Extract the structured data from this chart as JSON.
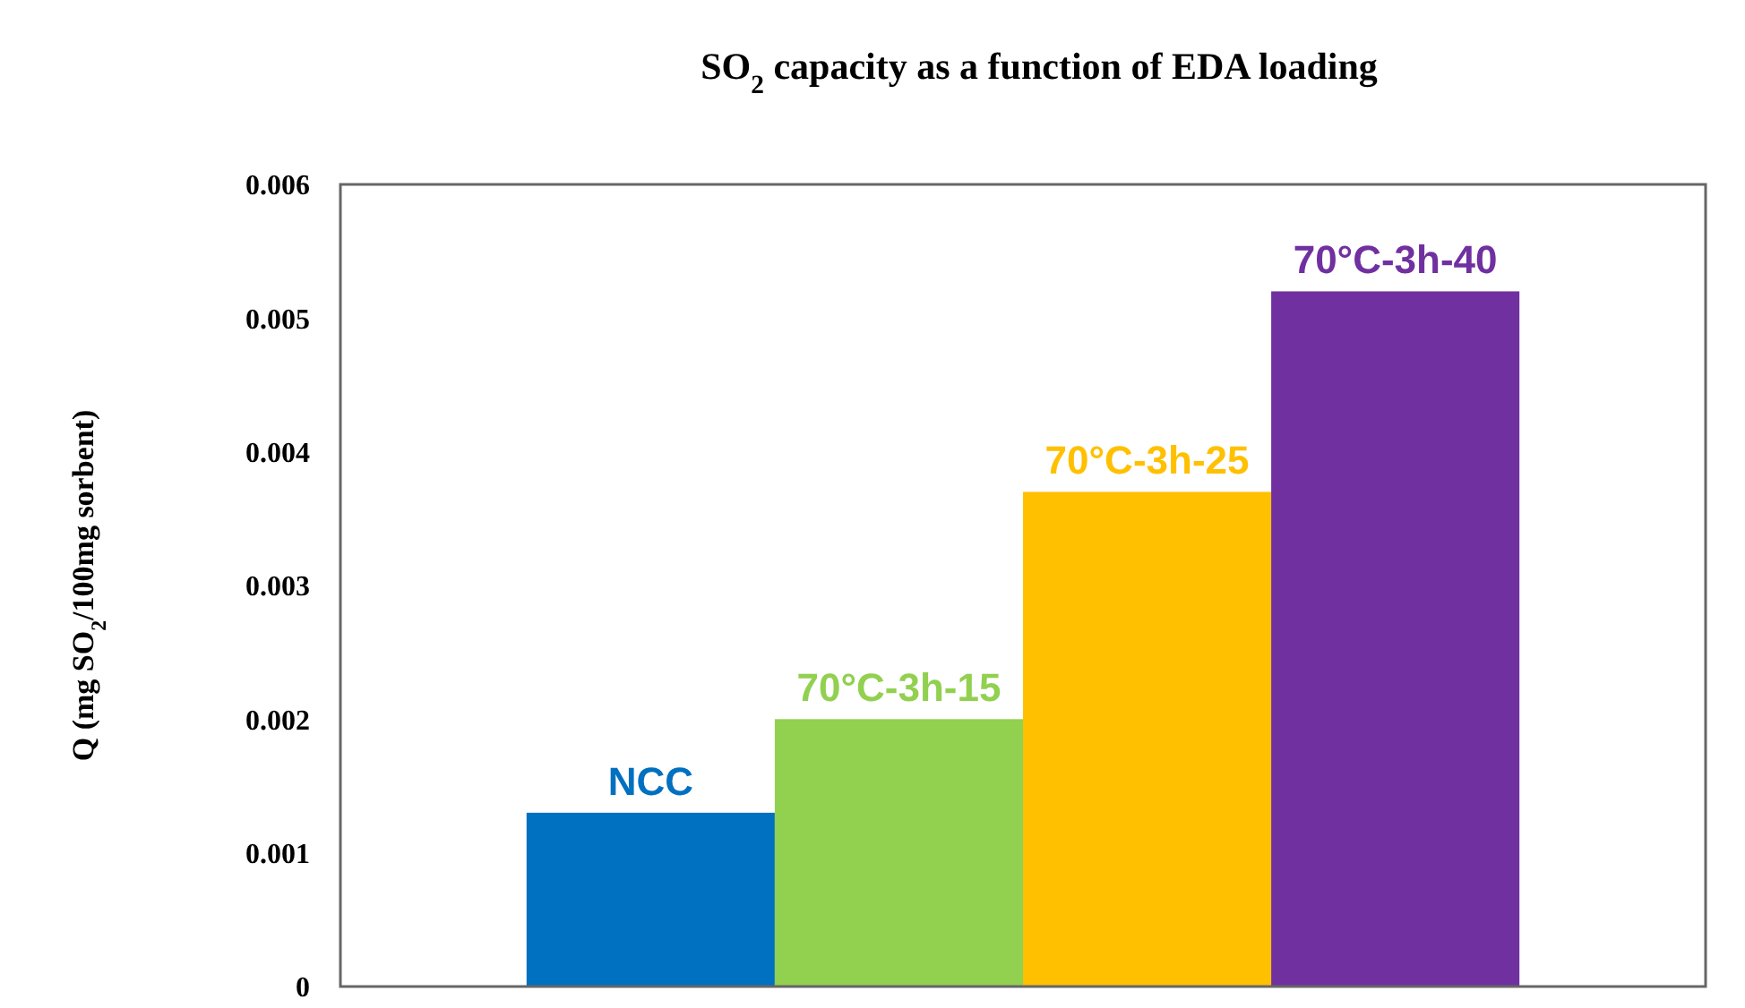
{
  "chart_data": {
    "type": "bar",
    "title": "SO$_{2}$ capacity as a function of EDA loading",
    "ylabel": "Q (mg SO$_{2}$/100mg sorbent)",
    "categories": [
      "NCC",
      "70°C-3h-15",
      "70°C-3h-25",
      "70°C-3h-40"
    ],
    "values": [
      0.0013,
      0.002,
      0.0037,
      0.0052
    ],
    "colors": [
      "#0070c0",
      "#92d050",
      "#ffc000",
      "#7030a0"
    ],
    "ylim": [
      0,
      0.006
    ],
    "yticks": [
      0,
      0.001,
      0.002,
      0.003,
      0.004,
      0.005,
      0.006
    ],
    "grid": false
  }
}
